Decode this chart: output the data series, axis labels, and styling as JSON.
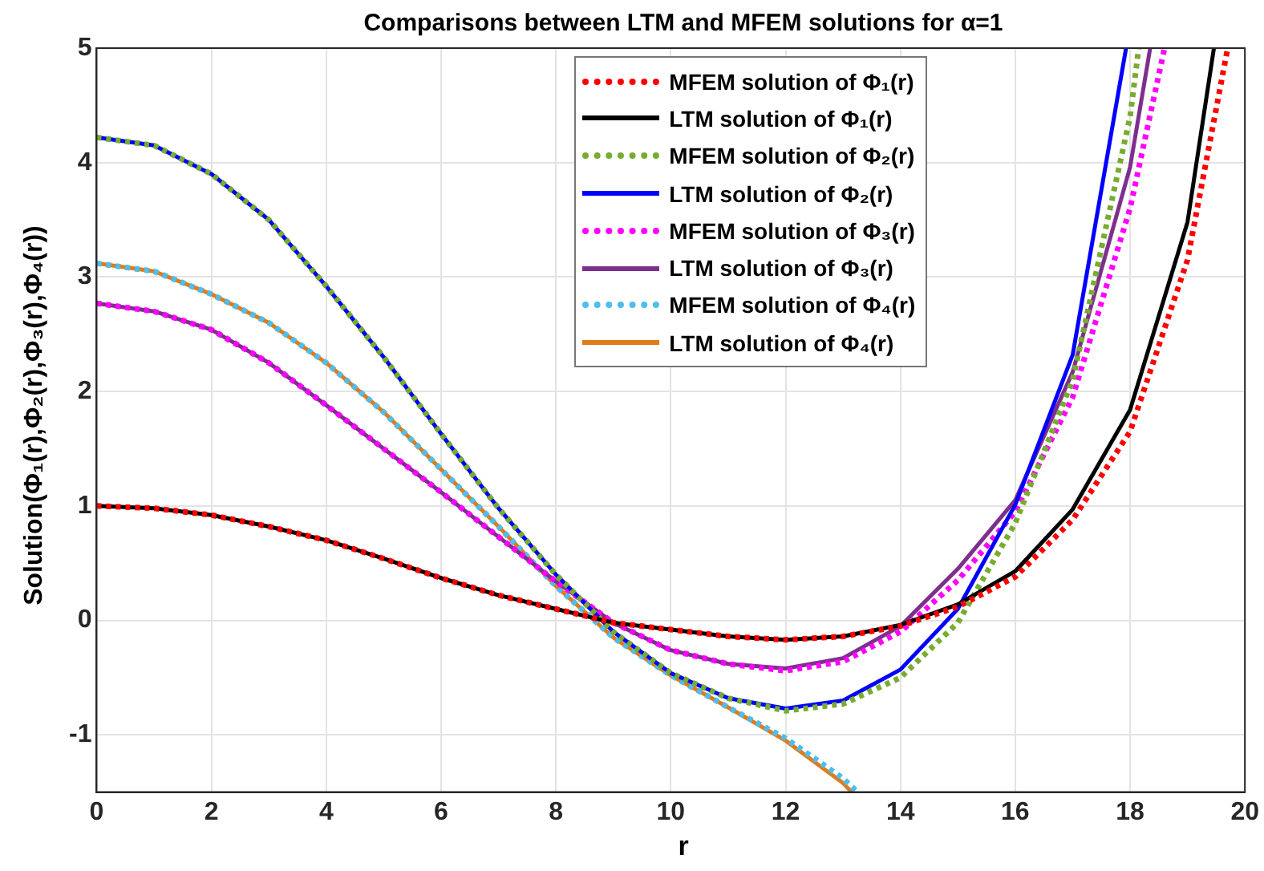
{
  "chart_data": {
    "type": "line",
    "title": "Comparisons between LTM and MFEM solutions for α=1",
    "xlabel": "r",
    "ylabel": "Solution(Φ₁(r),Φ₂(r),Φ₃(r),Φ₄(r))",
    "xlim": [
      0,
      20
    ],
    "xticks": [
      0,
      2,
      4,
      6,
      8,
      10,
      12,
      14,
      16,
      18,
      20
    ],
    "ylim": [
      -1.5,
      5
    ],
    "yticks": [
      -1,
      0,
      1,
      2,
      3,
      4,
      5
    ],
    "grid": true,
    "legend": "top",
    "marker": "none",
    "series": [
      {
        "name": "MFEM solution of Φ₁(r)",
        "color": "#ff0000",
        "line_style": "dotted",
        "x": [
          0,
          1,
          2,
          3,
          4,
          5,
          6,
          7,
          8,
          9,
          10,
          11,
          12,
          13,
          14,
          15,
          16,
          17,
          18,
          19,
          19.7
        ],
        "values": [
          1.0,
          0.98,
          0.92,
          0.82,
          0.7,
          0.54,
          0.37,
          0.22,
          0.1,
          -0.02,
          -0.08,
          -0.14,
          -0.17,
          -0.14,
          -0.05,
          0.12,
          0.38,
          0.88,
          1.65,
          3.15,
          5
        ]
      },
      {
        "name": "LTM solution of Φ₁(r)",
        "color": "#000000",
        "line_style": "solid",
        "x": [
          0,
          1,
          2,
          3,
          4,
          5,
          6,
          7,
          8,
          9,
          10,
          11,
          12,
          13,
          14,
          15,
          16,
          17,
          18,
          19,
          19.46
        ],
        "values": [
          1.0,
          0.98,
          0.92,
          0.82,
          0.7,
          0.54,
          0.37,
          0.22,
          0.1,
          -0.02,
          -0.08,
          -0.14,
          -0.17,
          -0.14,
          -0.04,
          0.14,
          0.43,
          0.97,
          1.84,
          3.48,
          5
        ]
      },
      {
        "name": "MFEM solution of Φ₂(r)",
        "color": "#77ac30",
        "line_style": "dotted",
        "x": [
          0,
          1,
          2,
          3,
          4,
          5,
          6,
          7,
          8,
          9,
          10,
          11,
          12,
          13,
          14,
          15,
          16,
          17,
          18,
          18.15
        ],
        "values": [
          4.22,
          4.15,
          3.9,
          3.5,
          2.92,
          2.3,
          1.63,
          0.98,
          0.4,
          -0.1,
          -0.46,
          -0.68,
          -0.79,
          -0.73,
          -0.5,
          -0.02,
          0.85,
          2.1,
          4.4,
          5
        ]
      },
      {
        "name": "LTM solution of Φ₂(r)",
        "color": "#0000ff",
        "line_style": "solid",
        "x": [
          0,
          1,
          2,
          3,
          4,
          5,
          6,
          7,
          8,
          9,
          10,
          11,
          12,
          13,
          14,
          15,
          16,
          17,
          17.93
        ],
        "values": [
          4.22,
          4.15,
          3.9,
          3.5,
          2.92,
          2.3,
          1.63,
          0.98,
          0.4,
          -0.1,
          -0.46,
          -0.68,
          -0.77,
          -0.7,
          -0.43,
          0.1,
          1.01,
          2.32,
          5
        ]
      },
      {
        "name": "MFEM solution of Φ₃(r)",
        "color": "#ff00ff",
        "line_style": "dotted",
        "x": [
          0,
          1,
          2,
          3,
          4,
          5,
          6,
          7,
          8,
          9,
          10,
          11,
          12,
          13,
          14,
          15,
          16,
          17,
          18,
          18.6
        ],
        "values": [
          2.77,
          2.7,
          2.54,
          2.25,
          1.88,
          1.5,
          1.12,
          0.73,
          0.34,
          -0.02,
          -0.26,
          -0.38,
          -0.44,
          -0.36,
          -0.1,
          0.35,
          0.95,
          1.95,
          3.6,
          5
        ]
      },
      {
        "name": "LTM solution of Φ₃(r)",
        "color": "#7e2f8e",
        "line_style": "solid",
        "x": [
          0,
          1,
          2,
          3,
          4,
          5,
          6,
          7,
          8,
          9,
          10,
          11,
          12,
          13,
          14,
          15,
          16,
          17,
          18,
          18.35
        ],
        "values": [
          2.77,
          2.7,
          2.54,
          2.25,
          1.88,
          1.5,
          1.12,
          0.73,
          0.34,
          -0.02,
          -0.26,
          -0.38,
          -0.42,
          -0.33,
          -0.05,
          0.45,
          1.05,
          2.17,
          3.96,
          5
        ]
      },
      {
        "name": "MFEM solution of Φ₄(r)",
        "color": "#4dbeee",
        "line_style": "dotted",
        "x": [
          0,
          1,
          2,
          3,
          4,
          5,
          6,
          7,
          8,
          9,
          10,
          11,
          12,
          13,
          13.25
        ],
        "values": [
          3.12,
          3.05,
          2.85,
          2.6,
          2.25,
          1.82,
          1.32,
          0.82,
          0.3,
          -0.15,
          -0.48,
          -0.76,
          -1.03,
          -1.38,
          -1.5
        ]
      },
      {
        "name": "LTM solution of Φ₄(r)",
        "color": "#e07b1a",
        "line_style": "solid",
        "x": [
          0,
          1,
          2,
          3,
          4,
          5,
          6,
          7,
          8,
          9,
          10,
          11,
          12,
          13,
          13.15
        ],
        "values": [
          3.12,
          3.05,
          2.85,
          2.6,
          2.25,
          1.82,
          1.32,
          0.82,
          0.3,
          -0.15,
          -0.48,
          -0.76,
          -1.05,
          -1.42,
          -1.5
        ]
      }
    ]
  }
}
